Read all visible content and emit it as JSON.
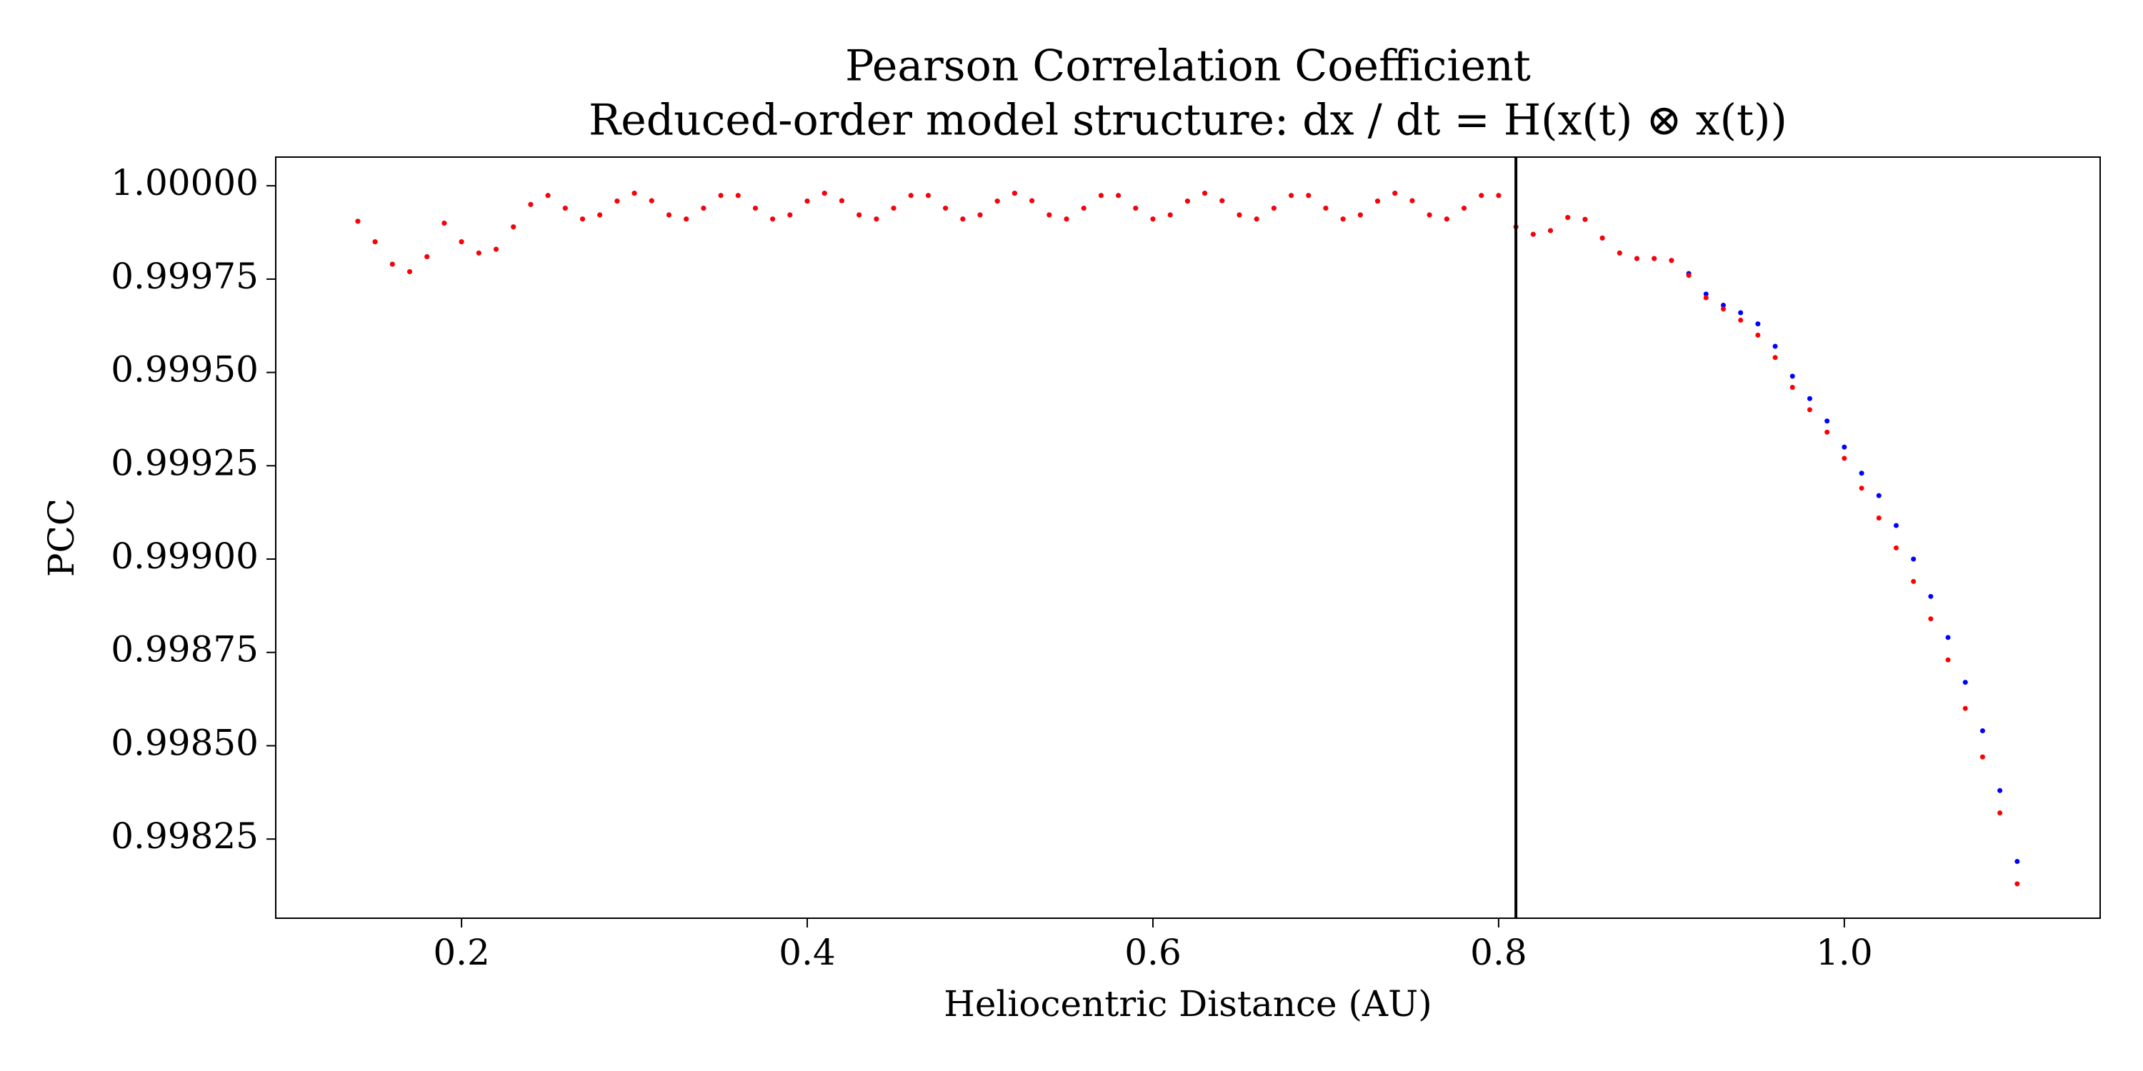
{
  "chart_data": {
    "type": "scatter",
    "title": "Pearson Correlation Coefficient",
    "subtitle": "Reduced-order model structure: dx / dt = H(x(t) ⊗ x(t))",
    "x_label": "Heliocentric Distance (AU)",
    "y_label": "PCC",
    "x": [
      0.14,
      0.15,
      0.16,
      0.17,
      0.18,
      0.19,
      0.2,
      0.21,
      0.22,
      0.23,
      0.24,
      0.25,
      0.26,
      0.27,
      0.28,
      0.29,
      0.3,
      0.31,
      0.32,
      0.33,
      0.34,
      0.35,
      0.36,
      0.37,
      0.38,
      0.39,
      0.4,
      0.41,
      0.42,
      0.43,
      0.44,
      0.45,
      0.46,
      0.47,
      0.48,
      0.49,
      0.5,
      0.51,
      0.52,
      0.53,
      0.54,
      0.55,
      0.56,
      0.57,
      0.58,
      0.59,
      0.6,
      0.61,
      0.62,
      0.63,
      0.64,
      0.65,
      0.66,
      0.67,
      0.68,
      0.69,
      0.7,
      0.71,
      0.72,
      0.73,
      0.74,
      0.75,
      0.76,
      0.77,
      0.78,
      0.79,
      0.8,
      0.81,
      0.82,
      0.83,
      0.84,
      0.85,
      0.86,
      0.87,
      0.88,
      0.89,
      0.9,
      0.91,
      0.92,
      0.93,
      0.94,
      0.95,
      0.96,
      0.97,
      0.98,
      0.99,
      1.0,
      1.01,
      1.02,
      1.03,
      1.04,
      1.05,
      1.06,
      1.07,
      1.08,
      1.09,
      1.1
    ],
    "series": [
      {
        "color": "#0000ff",
        "values": [
          0.999905,
          0.99985,
          0.99979,
          0.99977,
          0.99981,
          0.9999,
          0.99985,
          0.99982,
          0.99983,
          0.99989,
          0.99995,
          0.999974,
          0.99994,
          0.999911,
          0.999922,
          0.999959,
          0.99998,
          0.99996,
          0.999922,
          0.999911,
          0.99994,
          0.999974,
          0.999974,
          0.99994,
          0.999911,
          0.999922,
          0.999959,
          0.99998,
          0.99996,
          0.999922,
          0.999911,
          0.99994,
          0.999974,
          0.999974,
          0.99994,
          0.999911,
          0.999922,
          0.999959,
          0.99998,
          0.99996,
          0.999922,
          0.999911,
          0.99994,
          0.999974,
          0.999974,
          0.99994,
          0.999911,
          0.999922,
          0.999959,
          0.99998,
          0.99996,
          0.999922,
          0.999911,
          0.99994,
          0.999974,
          0.999974,
          0.99994,
          0.999911,
          0.999922,
          0.999959,
          0.99998,
          0.99996,
          0.999922,
          0.999911,
          0.99994,
          0.999974,
          0.999974,
          0.99989,
          0.99987,
          0.99988,
          0.999915,
          0.99991,
          0.99986,
          0.99982,
          0.999805,
          0.999805,
          0.9998,
          0.999765,
          0.99971,
          0.99968,
          0.99966,
          0.99963,
          0.99957,
          0.99949,
          0.99943,
          0.99937,
          0.9993,
          0.99923,
          0.99917,
          0.99909,
          0.999,
          0.9989,
          0.99879,
          0.99867,
          0.99854,
          0.99838,
          0.99819
        ]
      },
      {
        "color": "#ff0000",
        "values": [
          0.999905,
          0.99985,
          0.99979,
          0.99977,
          0.99981,
          0.9999,
          0.99985,
          0.99982,
          0.99983,
          0.99989,
          0.99995,
          0.999974,
          0.99994,
          0.999911,
          0.999922,
          0.999959,
          0.99998,
          0.99996,
          0.999922,
          0.999911,
          0.99994,
          0.999974,
          0.999974,
          0.99994,
          0.999911,
          0.999922,
          0.999959,
          0.99998,
          0.99996,
          0.999922,
          0.999911,
          0.99994,
          0.999974,
          0.999974,
          0.99994,
          0.999911,
          0.999922,
          0.999959,
          0.99998,
          0.99996,
          0.999922,
          0.999911,
          0.99994,
          0.999974,
          0.999974,
          0.99994,
          0.999911,
          0.999922,
          0.999959,
          0.99998,
          0.99996,
          0.999922,
          0.999911,
          0.99994,
          0.999974,
          0.999974,
          0.99994,
          0.999911,
          0.999922,
          0.999959,
          0.99998,
          0.99996,
          0.999922,
          0.999911,
          0.99994,
          0.999974,
          0.999974,
          0.99989,
          0.99987,
          0.99988,
          0.999915,
          0.99991,
          0.99986,
          0.99982,
          0.999805,
          0.999805,
          0.9998,
          0.99976,
          0.9997,
          0.99967,
          0.99964,
          0.9996,
          0.99954,
          0.99946,
          0.9994,
          0.99934,
          0.99927,
          0.99919,
          0.99911,
          0.99903,
          0.99894,
          0.99884,
          0.99873,
          0.9986,
          0.99847,
          0.99832,
          0.99813
        ]
      }
    ],
    "vline_x": 0.81,
    "vline_color": "#000000",
    "xlim": [
      0.0925,
      1.148
    ],
    "ylim": [
      0.998038,
      1.0000769
    ],
    "xticks": [
      0.2,
      0.4,
      0.6,
      0.8,
      {
        "value": 1.0,
        "label": "1.0"
      }
    ],
    "yticks": [
      {
        "value": 1.0,
        "label": "1.00000"
      },
      {
        "value": 0.99975,
        "label": "0.99975"
      },
      {
        "value": 0.9995,
        "label": "0.99950"
      },
      {
        "value": 0.99925,
        "label": "0.99925"
      },
      {
        "value": 0.999,
        "label": "0.99900"
      },
      {
        "value": 0.99875,
        "label": "0.99875"
      },
      {
        "value": 0.9985,
        "label": "0.99850"
      },
      {
        "value": 0.99825,
        "label": "0.99825"
      }
    ],
    "grid": false
  }
}
